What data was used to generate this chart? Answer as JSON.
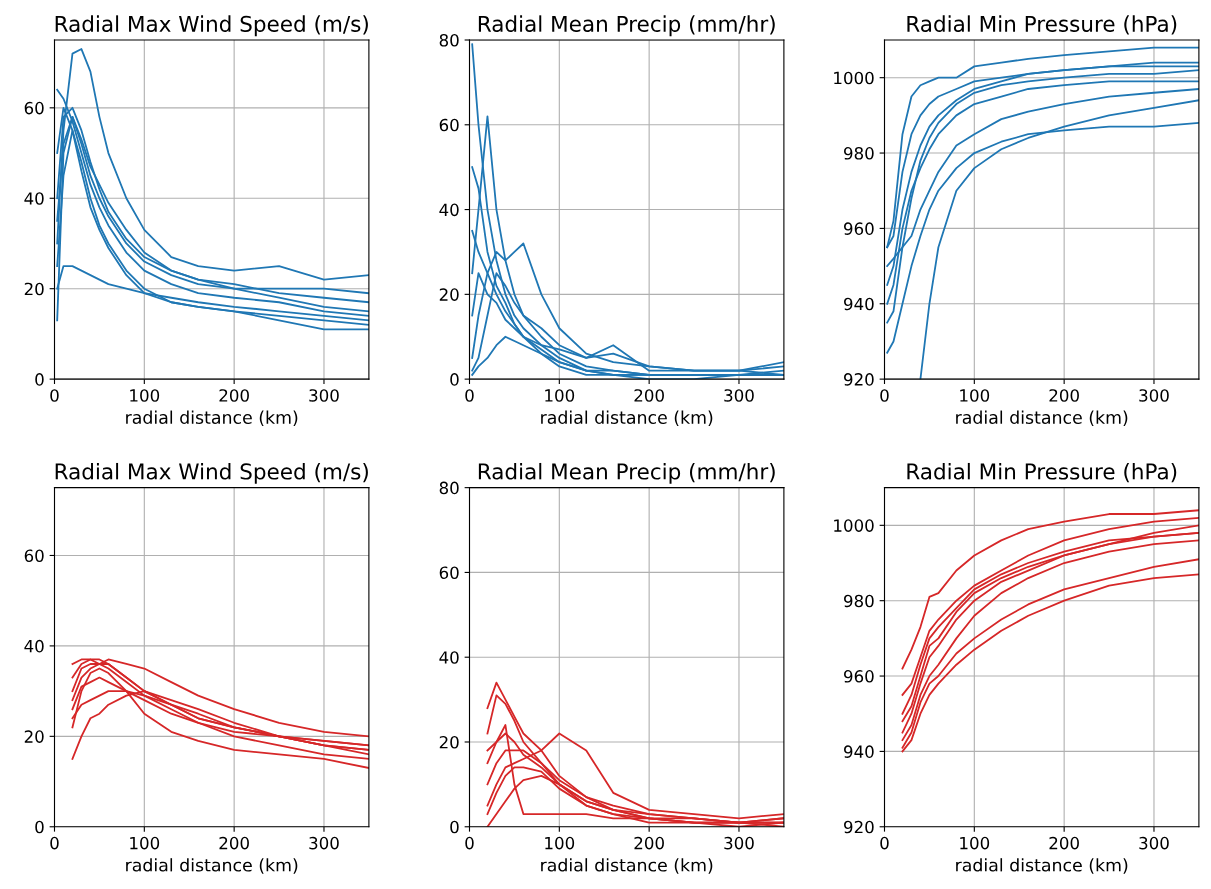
{
  "chart_data": [
    {
      "type": "line",
      "title": "Radial Max Wind Speed (m/s)",
      "xlabel": "radial distance (km)",
      "xlim": [
        0,
        350
      ],
      "xticks": [
        0,
        100,
        200,
        300
      ],
      "ylim": [
        0,
        75
      ],
      "yticks": [
        0,
        20,
        40,
        60
      ],
      "grid": true,
      "x": [
        3,
        10,
        20,
        30,
        40,
        50,
        60,
        80,
        100,
        130,
        160,
        200,
        250,
        300,
        350
      ],
      "series": [
        {
          "color": "#1f77b4",
          "values": [
            13,
            50,
            58,
            52,
            45,
            40,
            36,
            30,
            26,
            23,
            21,
            20,
            18,
            16,
            15
          ]
        },
        {
          "color": "#1f77b4",
          "values": [
            64,
            62,
            57,
            50,
            43,
            38,
            34,
            28,
            24,
            21,
            19,
            18,
            17,
            15,
            14
          ]
        },
        {
          "color": "#1f77b4",
          "values": [
            30,
            55,
            72,
            73,
            68,
            58,
            50,
            40,
            33,
            27,
            25,
            24,
            25,
            22,
            23
          ]
        },
        {
          "color": "#1f77b4",
          "values": [
            20,
            25,
            25,
            24,
            23,
            22,
            21,
            20,
            19,
            18,
            17,
            16,
            15,
            14,
            13
          ]
        },
        {
          "color": "#1f77b4",
          "values": [
            40,
            58,
            60,
            55,
            48,
            42,
            37,
            31,
            27,
            24,
            22,
            21,
            19,
            18,
            17
          ]
        },
        {
          "color": "#1f77b4",
          "values": [
            25,
            45,
            55,
            48,
            40,
            34,
            30,
            24,
            20,
            17,
            16,
            15,
            13,
            11,
            11
          ]
        },
        {
          "color": "#1f77b4",
          "values": [
            50,
            60,
            55,
            46,
            38,
            33,
            29,
            23,
            19,
            17,
            16,
            15,
            14,
            13,
            12
          ]
        },
        {
          "color": "#1f77b4",
          "values": [
            35,
            52,
            58,
            53,
            47,
            43,
            39,
            33,
            28,
            24,
            22,
            20,
            20,
            20,
            19
          ]
        }
      ]
    },
    {
      "type": "line",
      "title": "Radial Mean Precip (mm/hr)",
      "xlabel": "radial distance (km)",
      "xlim": [
        0,
        350
      ],
      "xticks": [
        0,
        100,
        200,
        300
      ],
      "ylim": [
        0,
        80
      ],
      "yticks": [
        0,
        20,
        40,
        60,
        80
      ],
      "grid": true,
      "x": [
        3,
        10,
        20,
        30,
        40,
        50,
        60,
        80,
        100,
        130,
        160,
        200,
        250,
        300,
        350
      ],
      "series": [
        {
          "color": "#1f77b4",
          "values": [
            79,
            60,
            40,
            28,
            20,
            15,
            12,
            8,
            5,
            2,
            1,
            1,
            1,
            1,
            1
          ]
        },
        {
          "color": "#1f77b4",
          "values": [
            50,
            45,
            30,
            22,
            18,
            13,
            10,
            6,
            4,
            2,
            1,
            1,
            1,
            1,
            2
          ]
        },
        {
          "color": "#1f77b4",
          "values": [
            25,
            40,
            62,
            40,
            28,
            20,
            15,
            10,
            6,
            3,
            2,
            1,
            1,
            1,
            1
          ]
        },
        {
          "color": "#1f77b4",
          "values": [
            5,
            15,
            25,
            30,
            28,
            30,
            32,
            20,
            12,
            6,
            4,
            3,
            2,
            2,
            3
          ]
        },
        {
          "color": "#1f77b4",
          "values": [
            2,
            5,
            15,
            25,
            22,
            18,
            15,
            12,
            8,
            5,
            6,
            3,
            2,
            2,
            1
          ]
        },
        {
          "color": "#1f77b4",
          "values": [
            15,
            25,
            20,
            18,
            14,
            12,
            10,
            7,
            4,
            2,
            2,
            1,
            1,
            1,
            1
          ]
        },
        {
          "color": "#1f77b4",
          "values": [
            35,
            30,
            25,
            20,
            16,
            13,
            10,
            8,
            7,
            5,
            8,
            2,
            2,
            2,
            4
          ]
        },
        {
          "color": "#1f77b4",
          "values": [
            1,
            3,
            5,
            8,
            10,
            9,
            8,
            6,
            3,
            1,
            1,
            0,
            0,
            1,
            1
          ]
        }
      ]
    },
    {
      "type": "line",
      "title": "Radial Min Pressure (hPa)",
      "xlabel": "radial distance (km)",
      "xlim": [
        0,
        350
      ],
      "xticks": [
        0,
        100,
        200,
        300
      ],
      "ylim": [
        920,
        1010
      ],
      "yticks": [
        920,
        940,
        960,
        980,
        1000
      ],
      "grid": true,
      "x": [
        3,
        10,
        20,
        30,
        40,
        50,
        60,
        80,
        100,
        130,
        160,
        200,
        250,
        300,
        350
      ],
      "series": [
        {
          "color": "#1f77b4",
          "values": [
            955,
            962,
            985,
            995,
            998,
            999,
            1000,
            1000,
            1003,
            1004,
            1005,
            1006,
            1007,
            1008,
            1008
          ]
        },
        {
          "color": "#1f77b4",
          "values": [
            935,
            938,
            955,
            968,
            978,
            984,
            988,
            993,
            996,
            998,
            999,
            1000,
            1001,
            1001,
            1002
          ]
        },
        {
          "color": "#1f77b4",
          "values": [
            927,
            930,
            940,
            950,
            958,
            965,
            970,
            976,
            980,
            983,
            985,
            986,
            987,
            987,
            988
          ]
        },
        {
          "color": "#1f77b4",
          "values": [
            945,
            950,
            965,
            975,
            982,
            987,
            990,
            994,
            997,
            999,
            1001,
            1002,
            1003,
            1004,
            1004
          ]
        },
        {
          "color": "#1f77b4",
          "values": [
            950,
            952,
            955,
            958,
            965,
            970,
            975,
            982,
            985,
            989,
            991,
            993,
            995,
            996,
            997
          ]
        },
        {
          "color": "#1f77b4",
          "values": [
            null,
            null,
            null,
            null,
            920,
            940,
            955,
            970,
            976,
            981,
            984,
            987,
            990,
            992,
            994
          ]
        },
        {
          "color": "#1f77b4",
          "values": [
            940,
            945,
            960,
            970,
            976,
            981,
            985,
            990,
            993,
            995,
            997,
            998,
            999,
            999,
            999
          ]
        },
        {
          "color": "#1f77b4",
          "values": [
            955,
            958,
            975,
            985,
            990,
            993,
            995,
            997,
            999,
            1000,
            1001,
            1002,
            1003,
            1003,
            1003
          ]
        }
      ]
    },
    {
      "type": "line",
      "title": "Radial Max Wind Speed (m/s)",
      "xlabel": "radial distance (km)",
      "xlim": [
        0,
        350
      ],
      "xticks": [
        0,
        100,
        200,
        300
      ],
      "ylim": [
        0,
        75
      ],
      "yticks": [
        0,
        20,
        40,
        60
      ],
      "grid": true,
      "x": [
        20,
        30,
        40,
        50,
        60,
        80,
        100,
        130,
        160,
        200,
        250,
        300,
        350
      ],
      "series": [
        {
          "color": "#d62728",
          "values": [
            15,
            20,
            24,
            25,
            27,
            29,
            30,
            28,
            26,
            23,
            20,
            18,
            17
          ]
        },
        {
          "color": "#d62728",
          "values": [
            36,
            37,
            37,
            37,
            36,
            33,
            30,
            27,
            24,
            22,
            20,
            18,
            17
          ]
        },
        {
          "color": "#d62728",
          "values": [
            30,
            35,
            36,
            36,
            37,
            36,
            35,
            32,
            29,
            26,
            23,
            21,
            20
          ]
        },
        {
          "color": "#d62728",
          "values": [
            22,
            30,
            34,
            35,
            34,
            30,
            25,
            21,
            19,
            17,
            16,
            15,
            13
          ]
        },
        {
          "color": "#d62728",
          "values": [
            26,
            31,
            32,
            33,
            32,
            30,
            28,
            25,
            23,
            20,
            18,
            16,
            15
          ]
        },
        {
          "color": "#d62728",
          "values": [
            33,
            36,
            37,
            36,
            35,
            32,
            29,
            26,
            23,
            21,
            20,
            19,
            18
          ]
        },
        {
          "color": "#d62728",
          "values": [
            24,
            27,
            28,
            29,
            30,
            30,
            29,
            27,
            25,
            22,
            20,
            19,
            18
          ]
        },
        {
          "color": "#d62728",
          "values": [
            28,
            33,
            35,
            36,
            36,
            33,
            30,
            27,
            24,
            22,
            20,
            18,
            16
          ]
        }
      ]
    },
    {
      "type": "line",
      "title": "Radial Mean Precip (mm/hr)",
      "xlabel": "radial distance (km)",
      "xlim": [
        0,
        350
      ],
      "xticks": [
        0,
        100,
        200,
        300
      ],
      "ylim": [
        0,
        80
      ],
      "yticks": [
        0,
        20,
        40,
        60,
        80
      ],
      "grid": true,
      "x": [
        20,
        30,
        40,
        50,
        60,
        80,
        100,
        130,
        160,
        200,
        250,
        300,
        350
      ],
      "series": [
        {
          "color": "#d62728",
          "values": [
            28,
            34,
            30,
            26,
            22,
            18,
            12,
            7,
            5,
            3,
            2,
            1,
            1
          ]
        },
        {
          "color": "#d62728",
          "values": [
            0,
            3,
            6,
            9,
            11,
            12,
            10,
            5,
            3,
            1,
            1,
            0,
            1
          ]
        },
        {
          "color": "#d62728",
          "values": [
            15,
            20,
            22,
            20,
            17,
            14,
            10,
            6,
            4,
            2,
            1,
            1,
            2
          ]
        },
        {
          "color": "#d62728",
          "values": [
            22,
            31,
            29,
            25,
            20,
            15,
            10,
            6,
            4,
            2,
            2,
            1,
            2
          ]
        },
        {
          "color": "#d62728",
          "values": [
            5,
            10,
            14,
            15,
            16,
            18,
            22,
            18,
            8,
            4,
            3,
            2,
            3
          ]
        },
        {
          "color": "#d62728",
          "values": [
            10,
            15,
            18,
            18,
            18,
            15,
            11,
            7,
            4,
            3,
            2,
            1,
            1
          ]
        },
        {
          "color": "#d62728",
          "values": [
            18,
            20,
            24,
            10,
            3,
            3,
            3,
            3,
            2,
            2,
            1,
            1,
            1
          ]
        },
        {
          "color": "#d62728",
          "values": [
            3,
            8,
            12,
            14,
            14,
            13,
            9,
            5,
            3,
            2,
            1,
            1,
            0
          ]
        }
      ]
    },
    {
      "type": "line",
      "title": "Radial Min Pressure (hPa)",
      "xlabel": "radial distance (km)",
      "xlim": [
        0,
        350
      ],
      "xticks": [
        0,
        100,
        200,
        300
      ],
      "ylim": [
        920,
        1010
      ],
      "yticks": [
        920,
        940,
        960,
        980,
        1000
      ],
      "grid": true,
      "x": [
        20,
        30,
        40,
        50,
        60,
        80,
        100,
        130,
        160,
        200,
        250,
        300,
        350
      ],
      "series": [
        {
          "color": "#d62728",
          "values": [
            962,
            967,
            973,
            981,
            982,
            988,
            992,
            996,
            999,
            1001,
            1003,
            1003,
            1004
          ]
        },
        {
          "color": "#d62728",
          "values": [
            945,
            950,
            958,
            965,
            968,
            975,
            980,
            985,
            988,
            992,
            995,
            998,
            1000
          ]
        },
        {
          "color": "#d62728",
          "values": [
            940,
            943,
            950,
            955,
            958,
            963,
            967,
            972,
            976,
            980,
            984,
            986,
            987
          ]
        },
        {
          "color": "#d62728",
          "values": [
            950,
            955,
            963,
            970,
            973,
            978,
            983,
            987,
            990,
            993,
            996,
            997,
            998
          ]
        },
        {
          "color": "#d62728",
          "values": [
            955,
            958,
            965,
            972,
            975,
            980,
            984,
            988,
            992,
            996,
            999,
            1001,
            1002
          ]
        },
        {
          "color": "#d62728",
          "values": [
            943,
            947,
            955,
            960,
            963,
            970,
            976,
            982,
            986,
            990,
            993,
            995,
            996
          ]
        },
        {
          "color": "#d62728",
          "values": [
            948,
            952,
            960,
            968,
            970,
            977,
            982,
            986,
            989,
            992,
            995,
            997,
            998
          ]
        },
        {
          "color": "#d62728",
          "values": [
            941,
            945,
            953,
            958,
            960,
            966,
            970,
            975,
            979,
            983,
            986,
            989,
            991
          ]
        }
      ]
    }
  ]
}
